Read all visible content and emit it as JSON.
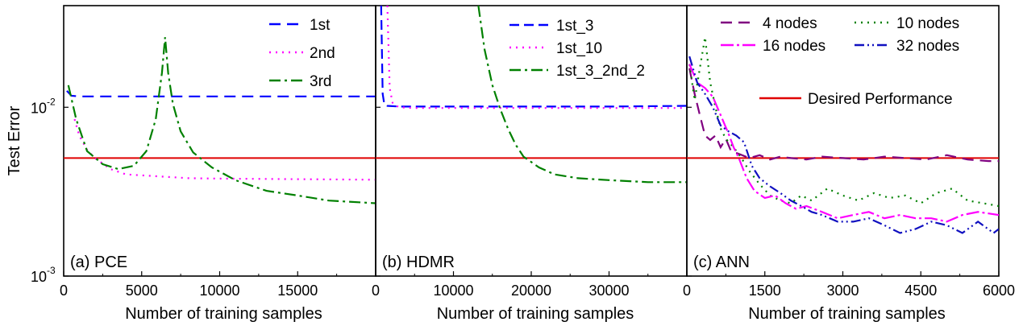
{
  "chart_data": {
    "ylabel": "Test Error",
    "yscale": "log",
    "ylim": [
      0.001,
      0.04
    ],
    "y_ticks": [
      {
        "value": 0.01,
        "base": "10",
        "exp": "-2"
      },
      {
        "value": 0.001,
        "base": "10",
        "exp": "-3"
      }
    ],
    "desired_performance": {
      "value": 0.005,
      "color": "#e00000",
      "label": "Desired Performance"
    },
    "panels": [
      {
        "id": "pce",
        "label": "(a) PCE",
        "type": "line",
        "xlabel": "Number of training samples",
        "xlim": [
          0,
          20000
        ],
        "x_ticks": [
          0,
          5000,
          10000,
          15000
        ],
        "x_tick_labels": [
          "0",
          "5000",
          "10000",
          "15000"
        ],
        "series": [
          {
            "name": "1st",
            "color": "#0000ff",
            "dash": "14,8",
            "x": [
              200,
              500,
              1000,
              2000,
              5000,
              10000,
              15000,
              20000
            ],
            "y": [
              0.0125,
              0.0117,
              0.0116,
              0.0116,
              0.0116,
              0.0116,
              0.0116,
              0.0116
            ]
          },
          {
            "name": "2nd",
            "color": "#ff00ff",
            "dash": "2,6",
            "x": [
              700,
              1000,
              1500,
              2000,
              3000,
              4000,
              6000,
              8000,
              10000,
              15000,
              20000
            ],
            "y": [
              0.0085,
              0.0068,
              0.0056,
              0.005,
              0.0043,
              0.004,
              0.0039,
              0.0038,
              0.00378,
              0.00375,
              0.00372
            ]
          },
          {
            "name": "3rd",
            "color": "#008000",
            "dash": "14,5,3,5",
            "x": [
              300,
              800,
              1500,
              2500,
              3500,
              4500,
              5300,
              5900,
              6300,
              6500,
              6700,
              7000,
              7500,
              8300,
              9500,
              11000,
              13000,
              15000,
              17000,
              20000
            ],
            "y": [
              0.0135,
              0.0085,
              0.0055,
              0.0046,
              0.0043,
              0.0045,
              0.0055,
              0.0085,
              0.016,
              0.026,
              0.016,
              0.0105,
              0.0072,
              0.0054,
              0.0044,
              0.0037,
              0.0032,
              0.003,
              0.0028,
              0.0027
            ]
          }
        ],
        "legend": "top-right"
      },
      {
        "id": "hdmr",
        "label": "(b) HDMR",
        "type": "line",
        "xlabel": "Number of training samples",
        "xlim": [
          0,
          40000
        ],
        "x_ticks": [
          0,
          10000,
          20000,
          30000
        ],
        "x_tick_labels": [
          "0",
          "10000",
          "20000",
          "30000"
        ],
        "series": [
          {
            "name": "1st_3",
            "color": "#0000ff",
            "dash": "12,6",
            "x": [
              700,
              900,
              1100,
              1500,
              3000,
              6000,
              10000,
              20000,
              30000,
              40000
            ],
            "y": [
              0.04,
              0.012,
              0.0105,
              0.0102,
              0.0101,
              0.0101,
              0.0101,
              0.0101,
              0.0101,
              0.0102
            ]
          },
          {
            "name": "1st_10",
            "color": "#ff00ff",
            "dash": "2,6",
            "x": [
              1500,
              1800,
              2200,
              3000,
              5000,
              10000,
              20000,
              30000,
              40000
            ],
            "y": [
              0.04,
              0.013,
              0.0105,
              0.01,
              0.0099,
              0.0099,
              0.0099,
              0.0099,
              0.0099
            ]
          },
          {
            "name": "1st_3_2nd_2",
            "color": "#008000",
            "dash": "14,5,3,5",
            "x": [
              13200,
              14000,
              15000,
              16000,
              17000,
              18000,
              19000,
              21000,
              23000,
              26000,
              30000,
              35000,
              40000
            ],
            "y": [
              0.04,
              0.022,
              0.0135,
              0.0098,
              0.0075,
              0.006,
              0.0051,
              0.0044,
              0.004,
              0.0038,
              0.0037,
              0.0036,
              0.0036
            ]
          }
        ],
        "legend": "top-right"
      },
      {
        "id": "ann",
        "label": "(c) ANN",
        "type": "line",
        "xlabel": "Number of training samples",
        "xlim": [
          0,
          6000
        ],
        "x_ticks": [
          0,
          1500,
          3000,
          4500,
          6000
        ],
        "x_tick_labels": [
          "0",
          "1500",
          "3000",
          "4500",
          "6000"
        ],
        "series": [
          {
            "name": "4 nodes",
            "color": "#800080",
            "dash": "14,8",
            "x": [
              50,
              150,
              250,
              350,
              450,
              550,
              650,
              750,
              850,
              1000,
              1200,
              1400,
              1600,
              1800,
              2000,
              2300,
              2600,
              3000,
              3400,
              3800,
              4200,
              4600,
              5000,
              5400,
              5800,
              6000
            ],
            "y": [
              0.017,
              0.012,
              0.009,
              0.0068,
              0.0064,
              0.0068,
              0.0058,
              0.0065,
              0.0055,
              0.0053,
              0.005,
              0.0052,
              0.0049,
              0.0051,
              0.005,
              0.0049,
              0.0051,
              0.005,
              0.0049,
              0.0051,
              0.005,
              0.0049,
              0.0052,
              0.0049,
              0.0048,
              0.0048
            ]
          },
          {
            "name": "10 nodes",
            "color": "#008000",
            "dash": "2,6",
            "x": [
              50,
              150,
              250,
              350,
              450,
              550,
              650,
              750,
              900,
              1050,
              1200,
              1400,
              1600,
              1800,
              2000,
              2200,
              2400,
              2700,
              3000,
              3300,
              3600,
              3900,
              4200,
              4500,
              4800,
              5100,
              5400,
              5700,
              6000
            ],
            "y": [
              0.018,
              0.011,
              0.017,
              0.026,
              0.014,
              0.01,
              0.0075,
              0.0065,
              0.0058,
              0.005,
              0.0042,
              0.0035,
              0.003,
              0.0028,
              0.0027,
              0.003,
              0.0028,
              0.0033,
              0.003,
              0.0028,
              0.0031,
              0.0029,
              0.003,
              0.0027,
              0.0031,
              0.0033,
              0.0028,
              0.0027,
              0.0026
            ]
          },
          {
            "name": "16 nodes",
            "color": "#ff00ff",
            "dash": "16,4,3,4",
            "x": [
              50,
              200,
              350,
              500,
              650,
              800,
              900,
              1000,
              1150,
              1300,
              1500,
              1700,
              1900,
              2100,
              2300,
              2600,
              2900,
              3200,
              3500,
              3800,
              4100,
              4400,
              4700,
              5000,
              5300,
              5600,
              6000
            ],
            "y": [
              0.018,
              0.014,
              0.013,
              0.0115,
              0.009,
              0.007,
              0.0058,
              0.005,
              0.0038,
              0.0032,
              0.0029,
              0.003,
              0.0027,
              0.0025,
              0.0026,
              0.0024,
              0.0022,
              0.0023,
              0.0024,
              0.0022,
              0.0023,
              0.0022,
              0.0022,
              0.0021,
              0.0023,
              0.0024,
              0.0023
            ]
          },
          {
            "name": "32 nodes",
            "color": "#1010c0",
            "dash": "12,4,2,4,2,4",
            "x": [
              50,
              200,
              350,
              500,
              650,
              800,
              950,
              1100,
              1250,
              1400,
              1600,
              1800,
              2000,
              2200,
              2400,
              2600,
              2900,
              3200,
              3500,
              3800,
              4100,
              4400,
              4700,
              5000,
              5300,
              5600,
              5900,
              6000
            ],
            "y": [
              0.02,
              0.014,
              0.012,
              0.01,
              0.0078,
              0.0072,
              0.0068,
              0.0062,
              0.0045,
              0.0038,
              0.0034,
              0.0031,
              0.0028,
              0.0026,
              0.0024,
              0.0023,
              0.0021,
              0.0021,
              0.0022,
              0.002,
              0.0018,
              0.0019,
              0.0021,
              0.002,
              0.0018,
              0.0021,
              0.0018,
              0.0019
            ]
          }
        ],
        "legend": "top"
      }
    ]
  }
}
